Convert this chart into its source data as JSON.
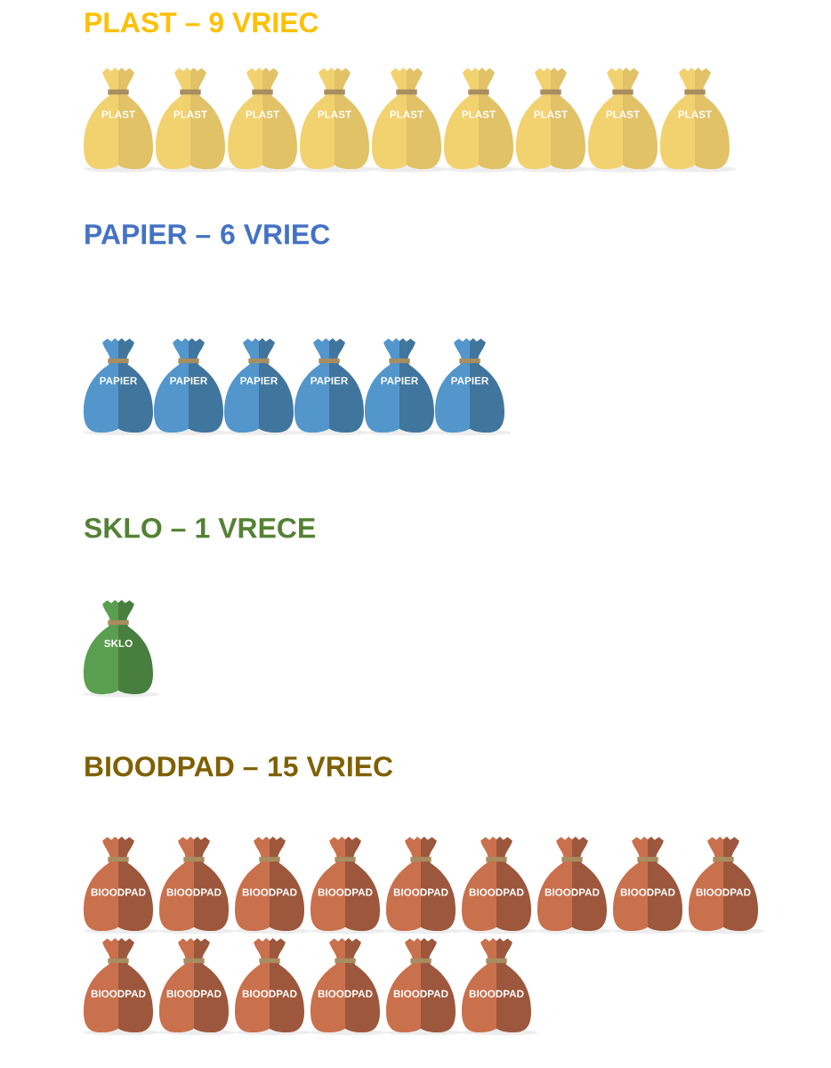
{
  "chart_data": [
    {
      "type": "other",
      "title": "PLAST –",
      "categories": [
        "PLAST"
      ],
      "values": [
        9
      ],
      "value_labels": [
        "9 VRIEC"
      ],
      "color": "#f2d16f"
    },
    {
      "type": "other",
      "title": "PAPIER –",
      "categories": [
        "PAPIER"
      ],
      "values": [
        6
      ],
      "value_labels": [
        "6 VRIEC"
      ],
      "color": "#5296cb"
    },
    {
      "type": "other",
      "title": "SKLO –",
      "categories": [
        "SKLO"
      ],
      "values": [
        1
      ],
      "value_labels": [
        "1 VRECE"
      ],
      "color": "#5a9f4f"
    },
    {
      "type": "other",
      "title": "BIOODPAD –",
      "categories": [
        "BIOODPAD"
      ],
      "values": [
        15
      ],
      "value_labels": [
        "15 VRIEC"
      ],
      "color": "#c9704d"
    }
  ]
}
